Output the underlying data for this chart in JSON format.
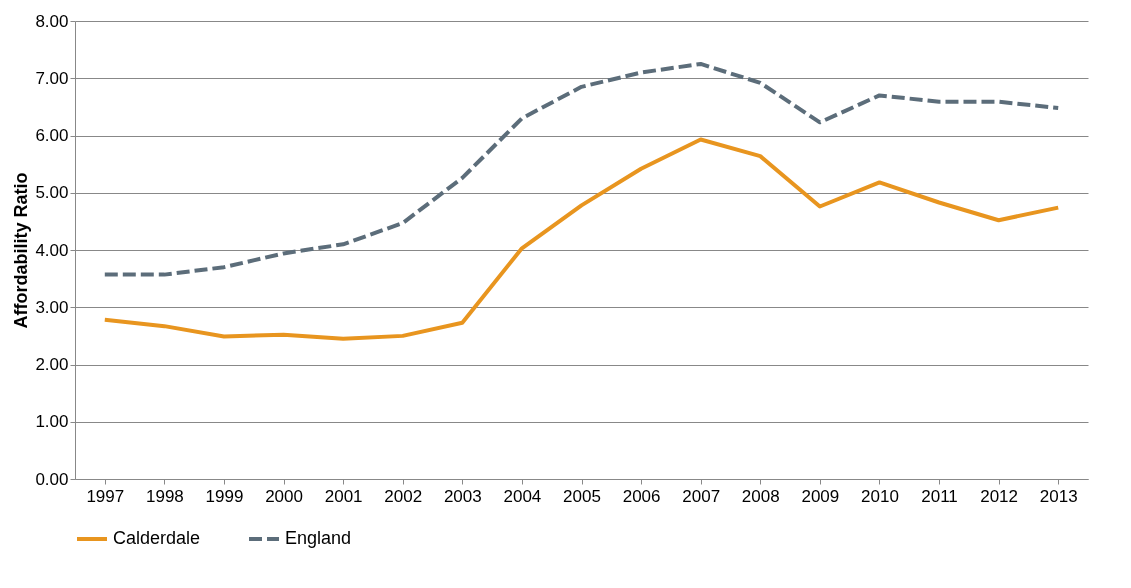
{
  "chart_data": {
    "type": "line",
    "ylabel": "Affordability Ratio",
    "categories": [
      "1997",
      "1998",
      "1999",
      "2000",
      "2001",
      "2002",
      "2003",
      "2004",
      "2005",
      "2006",
      "2007",
      "2008",
      "2009",
      "2010",
      "2011",
      "2012",
      "2013"
    ],
    "series": [
      {
        "name": "Calderdale",
        "color": "#e8951f",
        "line_style": "solid",
        "values": [
          2.78,
          2.67,
          2.49,
          2.52,
          2.45,
          2.5,
          2.73,
          4.03,
          4.78,
          5.42,
          5.93,
          5.64,
          4.76,
          5.18,
          4.83,
          4.52,
          4.74
        ]
      },
      {
        "name": "England",
        "color": "#5c6d7a",
        "line_style": "dashed",
        "values": [
          3.57,
          3.57,
          3.7,
          3.94,
          4.1,
          4.47,
          5.26,
          6.3,
          6.85,
          7.1,
          7.25,
          6.92,
          6.23,
          6.7,
          6.59,
          6.59,
          6.48
        ]
      }
    ],
    "ylim": [
      0,
      8
    ],
    "yticks": [
      {
        "value": 0,
        "label": "0.00"
      },
      {
        "value": 1,
        "label": "1.00"
      },
      {
        "value": 2,
        "label": "2.00"
      },
      {
        "value": 3,
        "label": "3.00"
      },
      {
        "value": 4,
        "label": "4.00"
      },
      {
        "value": 5,
        "label": "5.00"
      },
      {
        "value": 6,
        "label": "6.00"
      },
      {
        "value": 7,
        "label": "7.00"
      },
      {
        "value": 8,
        "label": "8.00"
      }
    ],
    "grid": "y",
    "legend": "bottom"
  }
}
